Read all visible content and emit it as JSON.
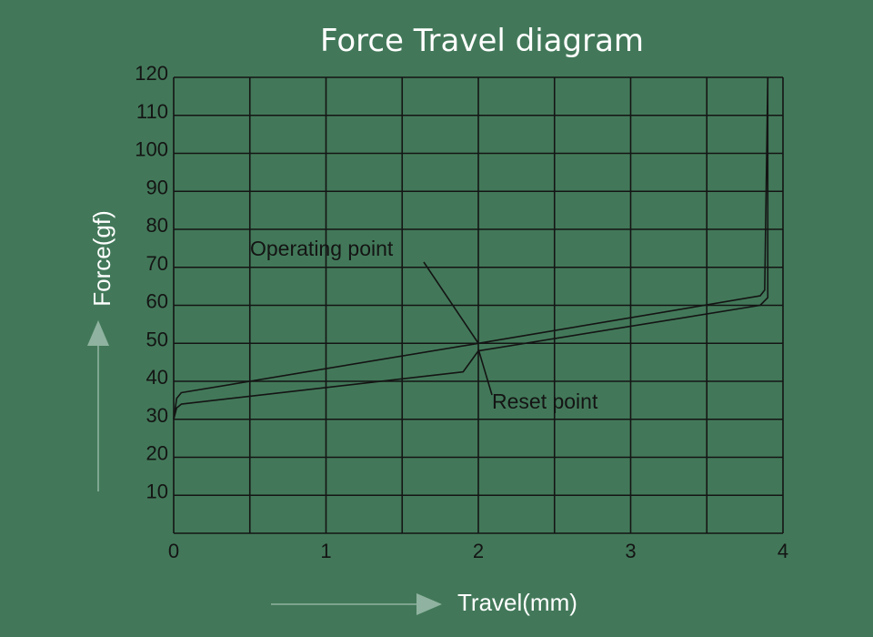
{
  "colors": {
    "background": "#427859",
    "ink": "#141414",
    "title": "#ffffff",
    "axis_label": "#ffffff",
    "arrow": "#8fb3a0"
  },
  "chart_data": {
    "type": "line",
    "title": "Force Travel diagram",
    "xlabel": "Travel(mm)",
    "ylabel": "Force(gf)",
    "xlim": [
      0,
      4
    ],
    "ylim": [
      0,
      120
    ],
    "x_ticks": [
      0,
      1,
      2,
      3,
      4
    ],
    "x_tick_labels": [
      "0",
      "1",
      "2",
      "3",
      "4"
    ],
    "x_grid": [
      0,
      0.5,
      1,
      1.5,
      2,
      2.5,
      3,
      3.5,
      4
    ],
    "y_ticks": [
      10,
      20,
      30,
      40,
      50,
      60,
      70,
      80,
      90,
      100,
      110,
      120
    ],
    "y_tick_labels": [
      "10",
      "20",
      "30",
      "40",
      "50",
      "60",
      "70",
      "80",
      "90",
      "100",
      "110",
      "120"
    ],
    "y_grid": [
      0,
      10,
      20,
      30,
      40,
      50,
      60,
      70,
      80,
      90,
      100,
      110,
      120
    ],
    "grid": true,
    "legend": "none",
    "series": [
      {
        "x": [
          0,
          0.02,
          0.05,
          2.0,
          3.85,
          3.88,
          3.9
        ],
        "y": [
          30,
          35.5,
          37,
          50,
          62.5,
          64,
          120
        ]
      },
      {
        "x": [
          0,
          0.02,
          0.05,
          1.9,
          2.0,
          3.85,
          3.9,
          3.9
        ],
        "y": [
          30,
          33,
          34,
          42.5,
          48,
          60,
          62,
          120
        ]
      }
    ],
    "annotations": [
      {
        "text": "Operating point",
        "x": 2.0,
        "y": 50
      },
      {
        "text": "Reset point",
        "x": 2.0,
        "y": 48
      }
    ]
  }
}
